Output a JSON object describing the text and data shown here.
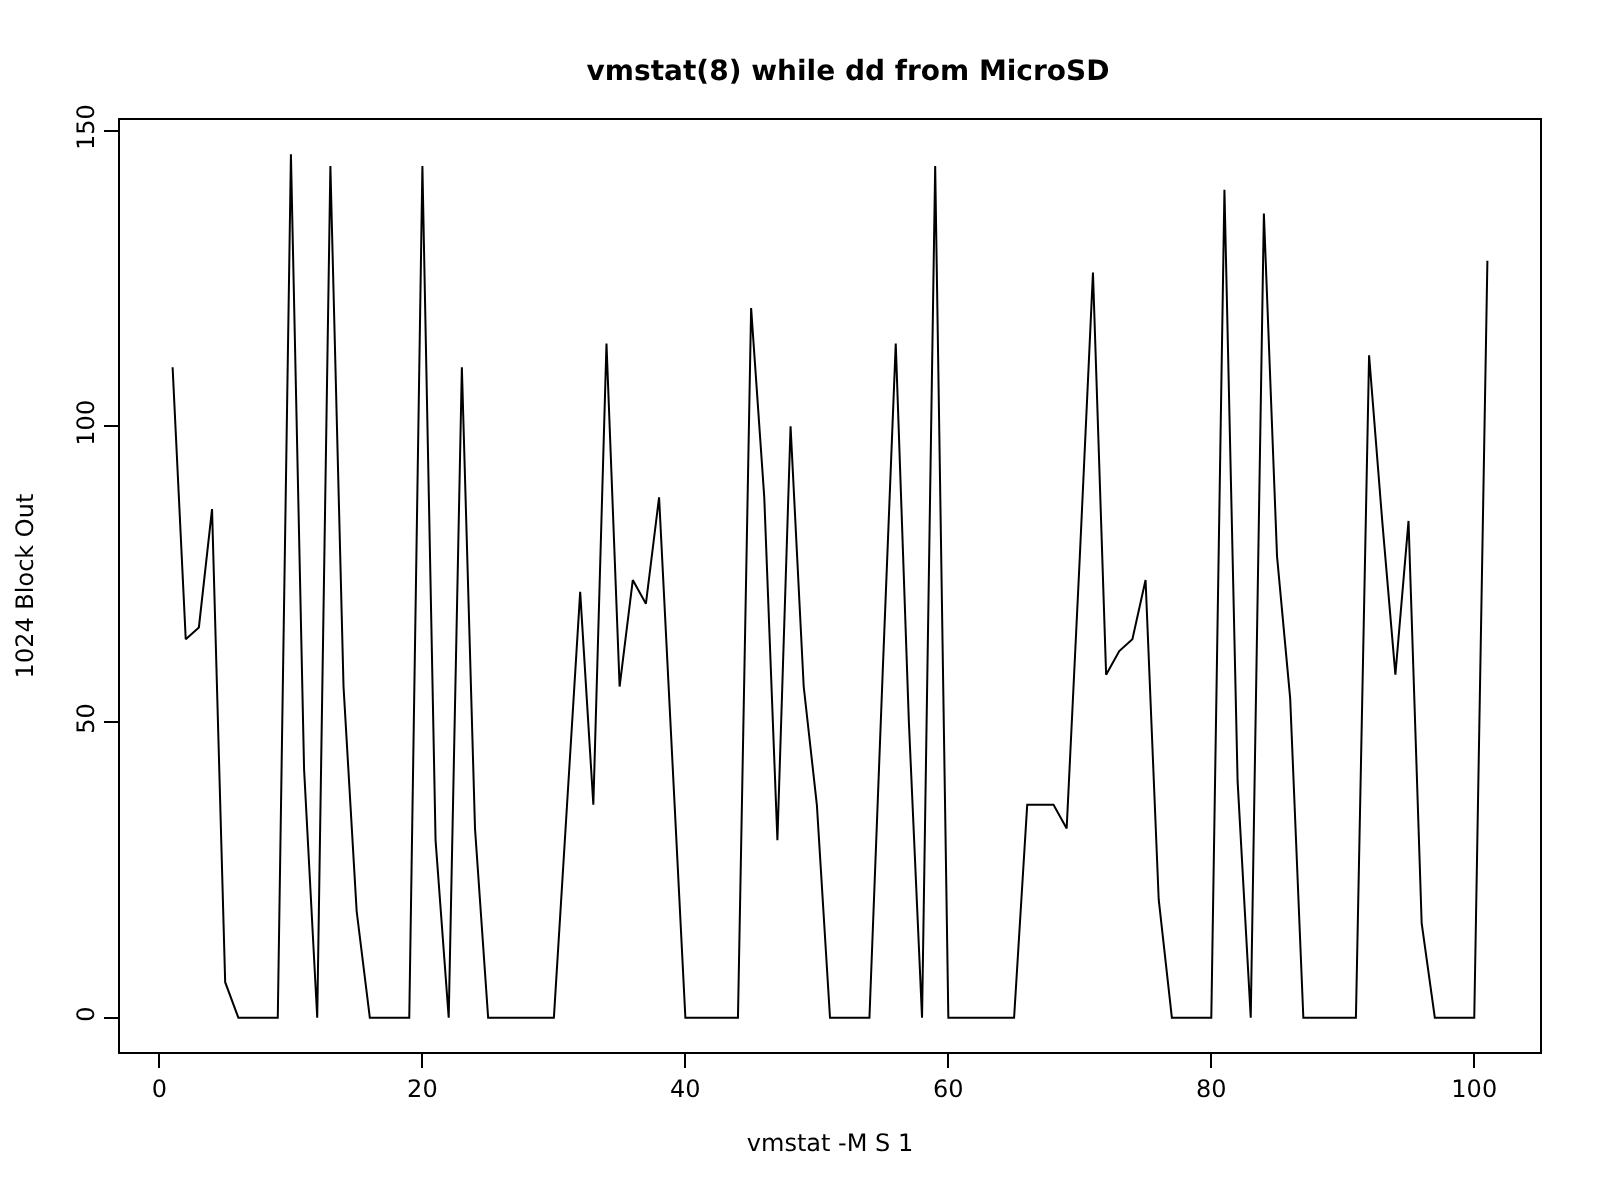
{
  "chart_data": {
    "type": "line",
    "title": "vmstat(8) while dd from MicroSD",
    "xlabel": "vmstat -M S 1",
    "ylabel": "1024 Block Out",
    "x": [
      1,
      2,
      3,
      4,
      5,
      6,
      7,
      8,
      9,
      10,
      11,
      12,
      13,
      14,
      15,
      16,
      17,
      18,
      19,
      20,
      21,
      22,
      23,
      24,
      25,
      26,
      27,
      28,
      29,
      30,
      31,
      32,
      33,
      34,
      35,
      36,
      37,
      38,
      39,
      40,
      41,
      42,
      43,
      44,
      45,
      46,
      47,
      48,
      49,
      50,
      51,
      52,
      53,
      54,
      55,
      56,
      57,
      58,
      59,
      60,
      61,
      62,
      63,
      64,
      65,
      66,
      67,
      68,
      69,
      70,
      71,
      72,
      73,
      74,
      75,
      76,
      77,
      78,
      79,
      80,
      81,
      82,
      83,
      84,
      85,
      86,
      87,
      88,
      89,
      90,
      91,
      92,
      93,
      94,
      95,
      96,
      97,
      98,
      99,
      100,
      101
    ],
    "series": [
      {
        "color": "#000000",
        "values": [
          110,
          64,
          66,
          86,
          6,
          0,
          0,
          0,
          0,
          146,
          42,
          0,
          144,
          56,
          18,
          0,
          0,
          0,
          0,
          144,
          30,
          0,
          110,
          32,
          0,
          0,
          0,
          0,
          0,
          0,
          36,
          72,
          36,
          114,
          56,
          74,
          70,
          88,
          44,
          0,
          0,
          0,
          0,
          0,
          120,
          88,
          30,
          100,
          56,
          36,
          0,
          0,
          0,
          0,
          58,
          114,
          50,
          0,
          144,
          0,
          0,
          0,
          0,
          0,
          0,
          36,
          36,
          36,
          32,
          78,
          126,
          58,
          62,
          64,
          74,
          20,
          0,
          0,
          0,
          0,
          140,
          40,
          0,
          136,
          78,
          54,
          0,
          0,
          0,
          0,
          0,
          112,
          84,
          58,
          84,
          16,
          0,
          0,
          0,
          0,
          128
        ]
      }
    ],
    "xlim": [
      -3,
      105
    ],
    "ylim": [
      -5.8,
      151.8
    ],
    "xticks": [
      0,
      20,
      40,
      60,
      80,
      100
    ],
    "yticks": [
      0,
      50,
      100,
      150
    ],
    "grid": false,
    "marker": "none",
    "line_style": "solid"
  }
}
